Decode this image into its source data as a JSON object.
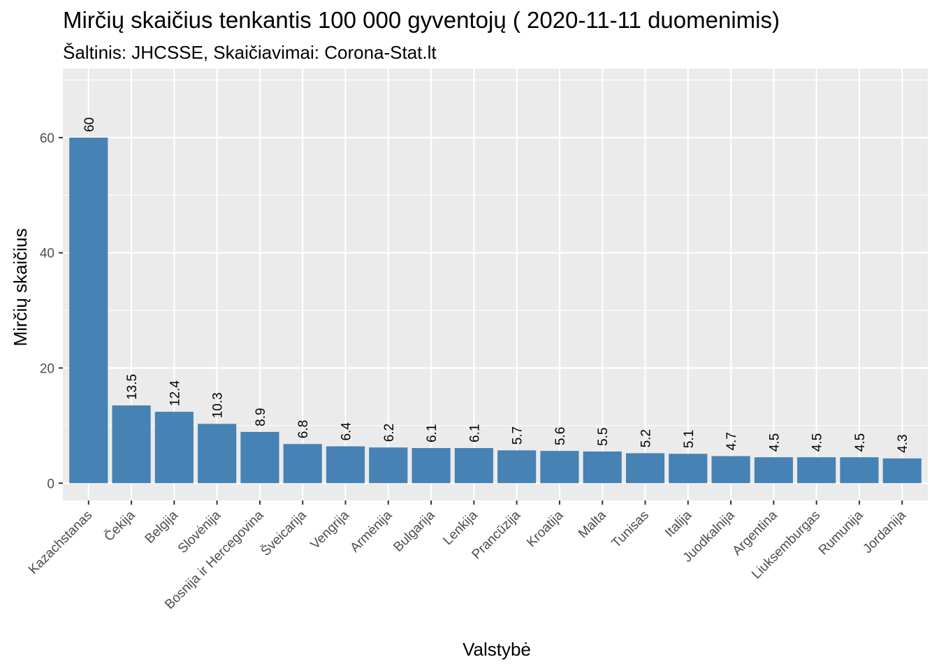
{
  "title": "Mirčių skaičius tenkantis 100 000 gyventojų ( 2020-11-11 duomenimis)",
  "subtitle": "Šaltinis: JHCSSE, Skaičiavimai: Corona-Stat.lt",
  "colors": {
    "bar": "#4682b4",
    "panel": "#ebebeb",
    "grid_major": "#ffffff",
    "tick_text": "#4d4d4d"
  },
  "chart_data": {
    "type": "bar",
    "title": "Mirčių skaičius tenkantis 100 000 gyventojų ( 2020-11-11 duomenimis)",
    "subtitle": "Šaltinis: JHCSSE, Skaičiavimai: Corona-Stat.lt",
    "xlabel": "Valstybė",
    "ylabel": "Mirčių skaičius",
    "categories": [
      "Kazachstanas",
      "Čekija",
      "Belgija",
      "Slovėnija",
      "Bosnija ir Hercegovina",
      "Šveicarija",
      "Vengrija",
      "Armėnija",
      "Bulgarija",
      "Lenkija",
      "Prancūzija",
      "Kroatija",
      "Malta",
      "Tunisas",
      "Italija",
      "Juodkalnija",
      "Argentina",
      "Liuksemburgas",
      "Rumunija",
      "Jordanija"
    ],
    "values": [
      60,
      13.5,
      12.4,
      10.3,
      8.9,
      6.8,
      6.4,
      6.2,
      6.1,
      6.1,
      5.7,
      5.6,
      5.5,
      5.2,
      5.1,
      4.7,
      4.5,
      4.5,
      4.5,
      4.3
    ],
    "value_labels": [
      "60",
      "13.5",
      "12.4",
      "10.3",
      "8.9",
      "6.8",
      "6.4",
      "6.2",
      "6.1",
      "6.1",
      "5.7",
      "5.6",
      "5.5",
      "5.2",
      "5.1",
      "4.7",
      "4.5",
      "4.5",
      "4.5",
      "4.3"
    ],
    "ylim": [
      -3,
      72
    ],
    "yticks": [
      0,
      20,
      40,
      60
    ],
    "ytick_labels": [
      "0",
      "20",
      "40",
      "60"
    ],
    "grid": true,
    "legend": "none"
  }
}
